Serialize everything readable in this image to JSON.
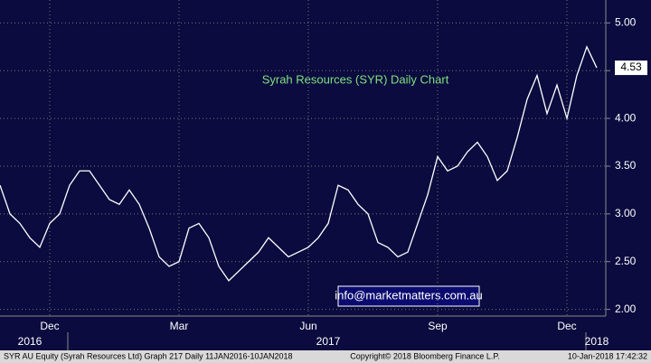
{
  "chart_data": {
    "type": "line",
    "title": "Syrah Resources (SYR) Daily Chart",
    "annotation": "info@marketmatters.com.au",
    "categories": [
      null,
      null,
      null,
      null,
      null,
      "Dec",
      null,
      null,
      null,
      null,
      null,
      null,
      null,
      null,
      null,
      null,
      null,
      null,
      "Mar",
      null,
      null,
      null,
      null,
      null,
      null,
      null,
      null,
      null,
      null,
      null,
      null,
      "Jun",
      null,
      null,
      null,
      null,
      null,
      null,
      null,
      null,
      null,
      null,
      null,
      null,
      "Sep",
      null,
      null,
      null,
      null,
      null,
      null,
      null,
      null,
      null,
      null,
      null,
      null,
      "Dec",
      null,
      null,
      null
    ],
    "year_categories": [
      null,
      null,
      null,
      "2016",
      null,
      null,
      null,
      null,
      null,
      null,
      null,
      null,
      null,
      null,
      null,
      null,
      null,
      null,
      null,
      null,
      null,
      null,
      null,
      null,
      null,
      null,
      null,
      null,
      null,
      null,
      null,
      null,
      null,
      "2017",
      null,
      null,
      null,
      null,
      null,
      null,
      null,
      null,
      null,
      null,
      null,
      null,
      null,
      null,
      null,
      null,
      null,
      null,
      null,
      null,
      null,
      null,
      null,
      null,
      null,
      null,
      "2018"
    ],
    "series": [
      {
        "name": "SYR AU Equity",
        "color": "#ffffff",
        "values": [
          3.3,
          3.0,
          2.9,
          2.75,
          2.65,
          2.9,
          3.0,
          3.3,
          3.45,
          3.45,
          3.3,
          3.15,
          3.1,
          3.25,
          3.1,
          2.85,
          2.55,
          2.45,
          2.5,
          2.85,
          2.9,
          2.75,
          2.45,
          2.3,
          2.4,
          2.5,
          2.6,
          2.75,
          2.65,
          2.55,
          2.6,
          2.65,
          2.75,
          2.9,
          3.3,
          3.25,
          3.1,
          3.0,
          2.7,
          2.65,
          2.55,
          2.6,
          2.9,
          3.2,
          3.6,
          3.45,
          3.5,
          3.65,
          3.75,
          3.6,
          3.35,
          3.45,
          3.8,
          4.2,
          4.45,
          4.05,
          4.35,
          4.0,
          4.45,
          4.75,
          4.53
        ]
      }
    ],
    "last_price": {
      "value": 4.53,
      "label": "4.53"
    },
    "ylim": [
      1.93,
      5.24
    ],
    "yticks": [
      {
        "value": 2,
        "label": "2.00"
      },
      {
        "value": 2.5,
        "label": "2.50"
      },
      {
        "value": 3,
        "label": "3.00"
      },
      {
        "value": 3.5,
        "label": "3.50"
      },
      {
        "value": 4,
        "label": "4.00"
      },
      {
        "value": 4.5,
        "label": "4.50"
      },
      {
        "value": 5,
        "label": "5.00"
      }
    ],
    "grid": true,
    "footer": {
      "left": "SYR AU Equity (Syrah Resources Ltd) Graph 217  Daily 11JAN2016-10JAN2018",
      "center": "Copyright© 2018 Bloomberg Finance L.P.",
      "right": "10-Jan-2018 17:42:32"
    }
  }
}
